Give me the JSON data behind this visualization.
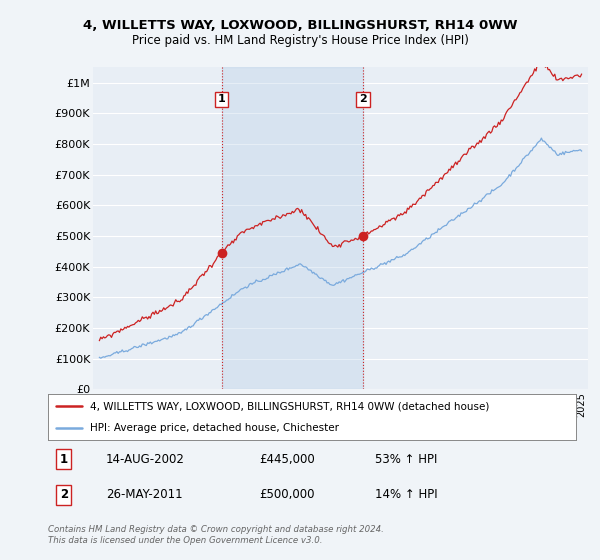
{
  "title": "4, WILLETTS WAY, LOXWOOD, BILLINGSHURST, RH14 0WW",
  "subtitle": "Price paid vs. HM Land Registry's House Price Index (HPI)",
  "ylim": [
    0,
    1050000
  ],
  "yticks": [
    0,
    100000,
    200000,
    300000,
    400000,
    500000,
    600000,
    700000,
    800000,
    900000,
    1000000
  ],
  "ytick_labels": [
    "£0",
    "£100K",
    "£200K",
    "£300K",
    "£400K",
    "£500K",
    "£600K",
    "£700K",
    "£800K",
    "£900K",
    "£1M"
  ],
  "background_color": "#f0f4f8",
  "plot_bg_color": "#e8eef5",
  "grid_color": "#ffffff",
  "fill_color": "#d0e0f0",
  "sale1_date_x": 2002.617,
  "sale1_price": 445000,
  "sale2_date_x": 2011.394,
  "sale2_price": 500000,
  "sale1_label": "1",
  "sale2_label": "2",
  "legend_line1": "4, WILLETTS WAY, LOXWOOD, BILLINGSHURST, RH14 0WW (detached house)",
  "legend_line2": "HPI: Average price, detached house, Chichester",
  "table_row1": [
    "1",
    "14-AUG-2002",
    "£445,000",
    "53% ↑ HPI"
  ],
  "table_row2": [
    "2",
    "26-MAY-2011",
    "£500,000",
    "14% ↑ HPI"
  ],
  "footer": "Contains HM Land Registry data © Crown copyright and database right 2024.\nThis data is licensed under the Open Government Licence v3.0.",
  "hpi_color": "#7aaadd",
  "price_color": "#cc2222",
  "sale_dot_color": "#cc2222",
  "vline_color": "#cc2222",
  "xlim_left": 1994.6,
  "xlim_right": 2025.4
}
